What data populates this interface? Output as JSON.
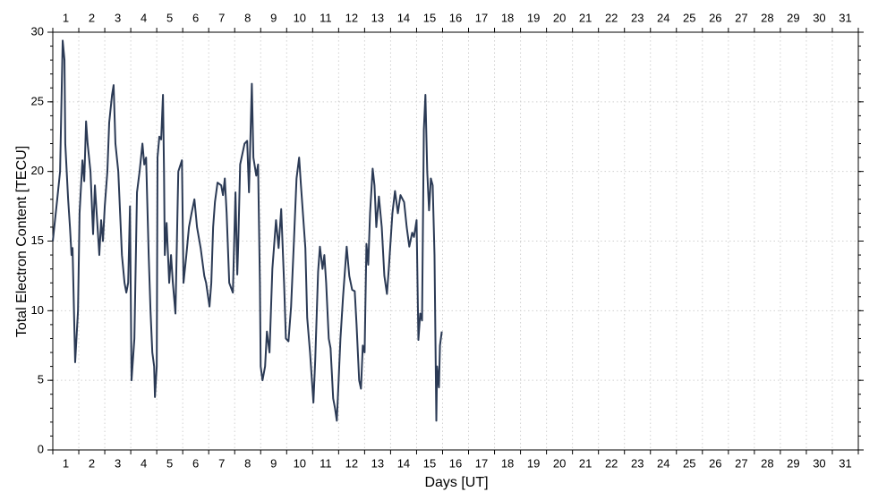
{
  "chart_data": {
    "type": "line",
    "xlabel": "Days [UT]",
    "ylabel": "Total Electron Content [TECU]",
    "xlim": [
      1,
      32
    ],
    "ylim": [
      0,
      30
    ],
    "xticks": [
      {
        "value": 1.5,
        "label": "1"
      },
      {
        "value": 2.5,
        "label": "2"
      },
      {
        "value": 3.5,
        "label": "3"
      },
      {
        "value": 4.5,
        "label": "4"
      },
      {
        "value": 5.5,
        "label": "5"
      },
      {
        "value": 6.5,
        "label": "6"
      },
      {
        "value": 7.5,
        "label": "7"
      },
      {
        "value": 8.5,
        "label": "8"
      },
      {
        "value": 9.5,
        "label": "9"
      },
      {
        "value": 10.5,
        "label": "10"
      },
      {
        "value": 11.5,
        "label": "11"
      },
      {
        "value": 12.5,
        "label": "12"
      },
      {
        "value": 13.5,
        "label": "13"
      },
      {
        "value": 14.5,
        "label": "14"
      },
      {
        "value": 15.5,
        "label": "15"
      },
      {
        "value": 16.5,
        "label": "16"
      },
      {
        "value": 17.5,
        "label": "17"
      },
      {
        "value": 18.5,
        "label": "18"
      },
      {
        "value": 19.5,
        "label": "19"
      },
      {
        "value": 20.5,
        "label": "20"
      },
      {
        "value": 21.5,
        "label": "21"
      },
      {
        "value": 22.5,
        "label": "22"
      },
      {
        "value": 23.5,
        "label": "23"
      },
      {
        "value": 24.5,
        "label": "24"
      },
      {
        "value": 25.5,
        "label": "25"
      },
      {
        "value": 26.5,
        "label": "26"
      },
      {
        "value": 27.5,
        "label": "27"
      },
      {
        "value": 28.5,
        "label": "28"
      },
      {
        "value": 29.5,
        "label": "29"
      },
      {
        "value": 30.5,
        "label": "30"
      },
      {
        "value": 31.5,
        "label": "31"
      }
    ],
    "yticks": [
      0,
      5,
      10,
      15,
      20,
      25,
      30
    ],
    "grid": true,
    "color": "#2b3a55",
    "x": [
      1.0,
      1.17,
      1.28,
      1.38,
      1.45,
      1.48,
      1.59,
      1.66,
      1.72,
      1.76,
      1.86,
      1.97,
      2.03,
      2.14,
      2.21,
      2.28,
      2.34,
      2.45,
      2.55,
      2.62,
      2.79,
      2.86,
      2.93,
      3.0,
      3.1,
      3.17,
      3.28,
      3.34,
      3.41,
      3.52,
      3.66,
      3.76,
      3.83,
      3.9,
      3.97,
      4.03,
      4.14,
      4.24,
      4.34,
      4.45,
      4.52,
      4.59,
      4.69,
      4.76,
      4.83,
      4.9,
      4.93,
      5.0,
      5.03,
      5.1,
      5.17,
      5.24,
      5.28,
      5.31,
      5.38,
      5.48,
      5.55,
      5.62,
      5.72,
      5.83,
      5.97,
      6.03,
      6.14,
      6.24,
      6.34,
      6.45,
      6.55,
      6.69,
      6.83,
      6.9,
      7.03,
      7.1,
      7.17,
      7.24,
      7.34,
      7.48,
      7.55,
      7.62,
      7.69,
      7.79,
      7.93,
      8.03,
      8.1,
      8.14,
      8.21,
      8.38,
      8.48,
      8.55,
      8.66,
      8.72,
      8.83,
      8.9,
      8.97,
      9.0,
      9.07,
      9.17,
      9.24,
      9.34,
      9.45,
      9.59,
      9.69,
      9.79,
      9.9,
      9.97,
      10.07,
      10.17,
      10.28,
      10.38,
      10.48,
      10.55,
      10.72,
      10.79,
      10.9,
      11.03,
      11.1,
      11.21,
      11.28,
      11.38,
      11.45,
      11.52,
      11.62,
      11.69,
      11.79,
      11.86,
      11.93,
      12.0,
      12.07,
      12.17,
      12.31,
      12.41,
      12.52,
      12.62,
      12.69,
      12.79,
      12.86,
      12.93,
      13.0,
      13.07,
      13.14,
      13.21,
      13.31,
      13.38,
      13.45,
      13.55,
      13.66,
      13.76,
      13.86,
      13.93,
      14.0,
      14.07,
      14.17,
      14.28,
      14.38,
      14.52,
      14.62,
      14.72,
      14.83,
      14.9,
      15.0,
      15.07,
      15.14,
      15.21,
      15.28,
      15.34,
      15.41,
      15.48,
      15.55,
      15.62,
      15.69,
      15.76,
      15.79,
      15.86,
      15.9,
      15.97
    ],
    "values": [
      15,
      18,
      20,
      29.4,
      28,
      22,
      18,
      16,
      14,
      14.5,
      6.3,
      10,
      17,
      20.8,
      19.3,
      23.6,
      22,
      20,
      15.5,
      19,
      14,
      16.5,
      15,
      17.5,
      20,
      23.5,
      25.5,
      26.2,
      22,
      20,
      14,
      12,
      11.3,
      12,
      17.5,
      5,
      8,
      18.5,
      20,
      22,
      20.5,
      21,
      14,
      10,
      7,
      6,
      3.8,
      6,
      21,
      22.5,
      22.3,
      25.5,
      20,
      14,
      16.3,
      12,
      14,
      12,
      9.8,
      20,
      20.8,
      12,
      14,
      16,
      17,
      18,
      16,
      14.5,
      12.5,
      12,
      10.3,
      12,
      16,
      17.8,
      19.2,
      19,
      18.3,
      19.5,
      17,
      12,
      11.3,
      18.5,
      12.6,
      15,
      20.5,
      22,
      22.2,
      18.5,
      26.3,
      21,
      19.7,
      20.5,
      12,
      6,
      5,
      6,
      8.5,
      7,
      13,
      16.5,
      14.5,
      17.3,
      12,
      8,
      7.8,
      10.3,
      15,
      19.5,
      21,
      19,
      14.5,
      9.5,
      7,
      3.4,
      6.5,
      12.8,
      14.6,
      13,
      14,
      12,
      8,
      7.3,
      3.7,
      3.0,
      2.1,
      5,
      8,
      11,
      14.6,
      12.5,
      11.5,
      11.4,
      9,
      5,
      4.4,
      7.5,
      7,
      14.8,
      13.3,
      17,
      20.2,
      19,
      16,
      18.2,
      16,
      12.5,
      11.2,
      13,
      15,
      17,
      18.6,
      17,
      18.3,
      17.8,
      16,
      14.6,
      15.6,
      15.3,
      16.5,
      7.9,
      9.8,
      9.3,
      23,
      25.5,
      20,
      17.2,
      19.5,
      19,
      14,
      2.1,
      6,
      4.5,
      7.5,
      8.5
    ]
  }
}
